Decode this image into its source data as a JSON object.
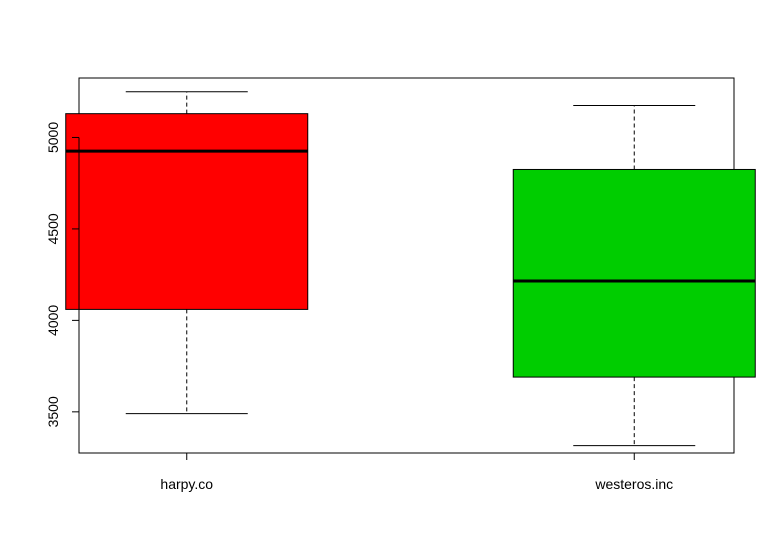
{
  "chart_data": {
    "type": "boxplot",
    "title": "",
    "xlabel": "",
    "ylabel": "",
    "categories": [
      "harpy.co",
      "westeros.inc"
    ],
    "boxes": [
      {
        "category": "harpy.co",
        "whisker_low": 3490,
        "q1": 4060,
        "median": 4925,
        "q3": 5130,
        "whisker_high": 5250,
        "color": "#ff0000"
      },
      {
        "category": "westeros.inc",
        "whisker_low": 3315,
        "q1": 3690,
        "median": 4215,
        "q3": 4825,
        "whisker_high": 5175,
        "color": "#00cd00"
      }
    ],
    "yticks": [
      3500,
      4000,
      4500,
      5000
    ],
    "ylim": [
      3275,
      5325
    ],
    "grid": false,
    "legend": "none"
  }
}
